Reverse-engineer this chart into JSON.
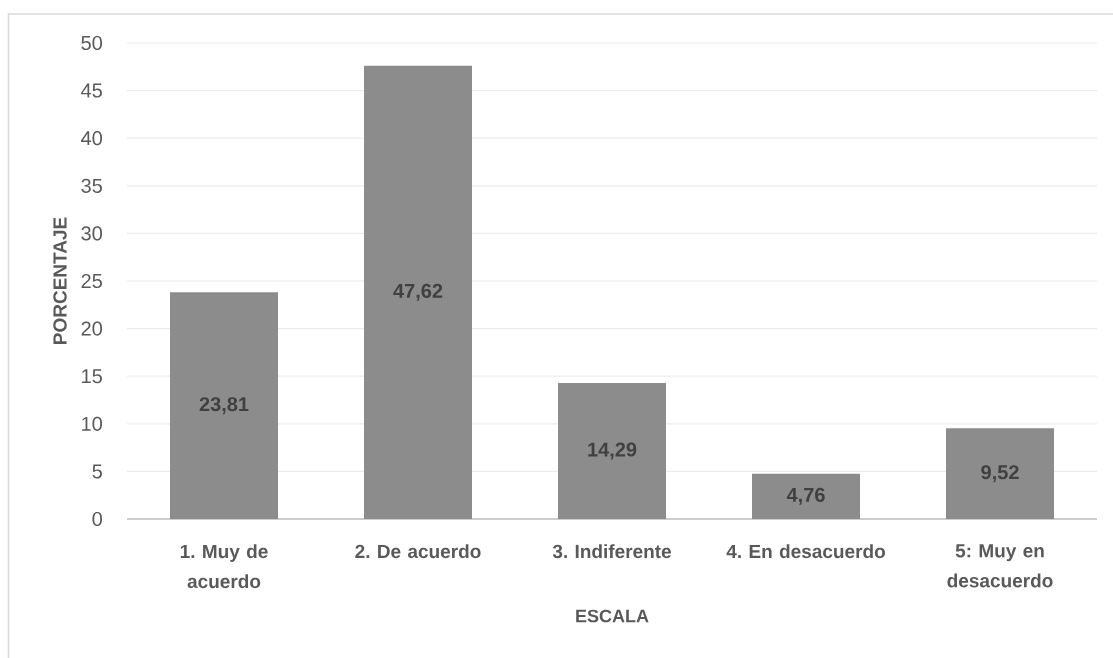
{
  "chart_data": {
    "type": "bar",
    "xlabel": "ESCALA",
    "ylabel": "PORCENTAJE",
    "categories": [
      "1. Muy de acuerdo",
      "2. De acuerdo",
      "3. Indiferente",
      "4. En desacuerdo",
      "5: Muy en desacuerdo"
    ],
    "values": [
      23.81,
      47.62,
      14.29,
      4.76,
      9.52
    ],
    "value_labels": [
      "23,81",
      "47,62",
      "14,29",
      "4,76",
      "9,52"
    ],
    "color": "#8c8c8c",
    "ylim": [
      0,
      50
    ],
    "yticks": [
      0,
      5,
      10,
      15,
      20,
      25,
      30,
      35,
      40,
      45,
      50
    ],
    "grid": "y"
  }
}
